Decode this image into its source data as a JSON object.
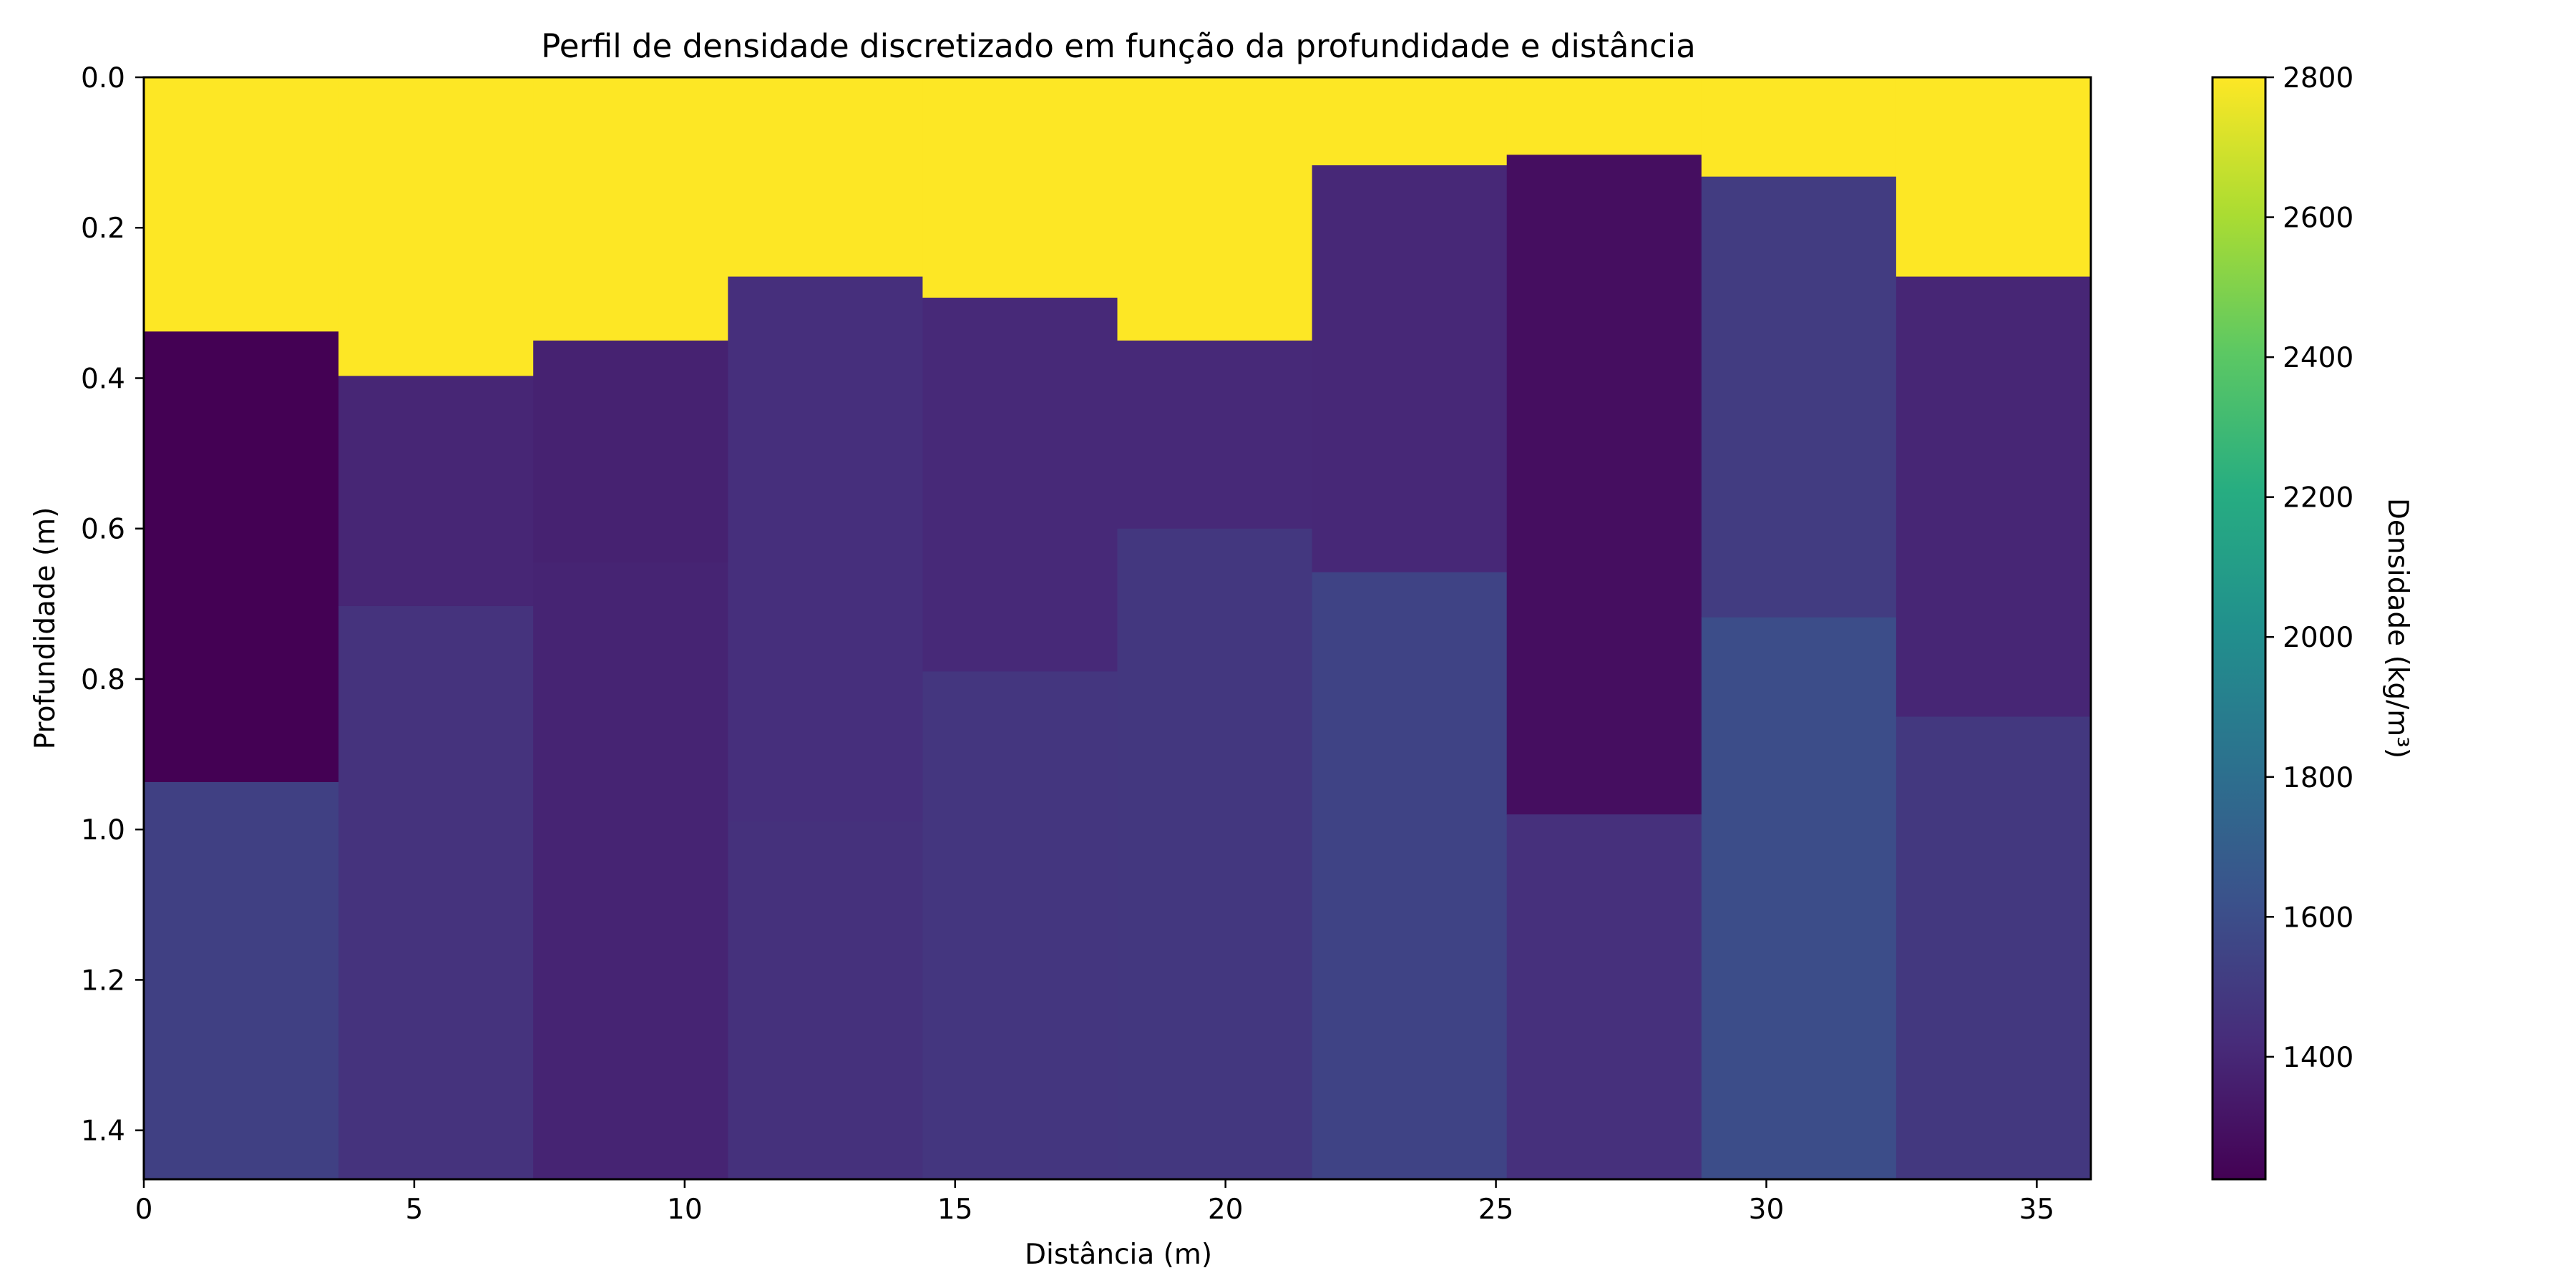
{
  "chart_data": {
    "type": "heatmap",
    "title": "Perfil de densidade discretizado em função da profundidade e distância",
    "xlabel": "Distância (m)",
    "ylabel": "Profundidade (m)",
    "xlim": [
      0,
      36
    ],
    "ylim": [
      1.465,
      0
    ],
    "y_inverted": true,
    "x_ticks": [
      0,
      5,
      10,
      15,
      20,
      25,
      30,
      35
    ],
    "y_ticks": [
      0.0,
      0.2,
      0.4,
      0.6,
      0.8,
      1.0,
      1.2,
      1.4
    ],
    "y_tick_labels": [
      "0.0",
      "0.2",
      "0.4",
      "0.6",
      "0.8",
      "1.0",
      "1.2",
      "1.4"
    ],
    "grid": false,
    "colormap": "viridis",
    "colorbar": {
      "label": "Densidade (kg/m³)",
      "range": [
        1225,
        2800
      ],
      "ticks": [
        1400,
        1600,
        1800,
        2000,
        2200,
        2400,
        2600,
        2800
      ]
    },
    "columns": [
      {
        "x0": 0.0,
        "x1": 3.6,
        "layers": [
          {
            "top": 0.0,
            "bottom": 0.338,
            "density": 2800
          },
          {
            "top": 0.338,
            "bottom": 0.937,
            "density": 1225
          },
          {
            "top": 0.937,
            "bottom": 1.465,
            "density": 1530
          }
        ]
      },
      {
        "x0": 3.6,
        "x1": 7.2,
        "layers": [
          {
            "top": 0.0,
            "bottom": 0.397,
            "density": 2800
          },
          {
            "top": 0.397,
            "bottom": 0.703,
            "density": 1395
          },
          {
            "top": 0.703,
            "bottom": 1.465,
            "density": 1460
          }
        ]
      },
      {
        "x0": 7.2,
        "x1": 10.8,
        "layers": [
          {
            "top": 0.0,
            "bottom": 0.35,
            "density": 2800
          },
          {
            "top": 0.35,
            "bottom": 0.645,
            "density": 1375
          },
          {
            "top": 0.645,
            "bottom": 1.465,
            "density": 1385
          }
        ]
      },
      {
        "x0": 10.8,
        "x1": 14.4,
        "layers": [
          {
            "top": 0.0,
            "bottom": 0.265,
            "density": 2800
          },
          {
            "top": 0.265,
            "bottom": 0.99,
            "density": 1440
          },
          {
            "top": 0.99,
            "bottom": 1.465,
            "density": 1450
          }
        ]
      },
      {
        "x0": 14.4,
        "x1": 18.0,
        "layers": [
          {
            "top": 0.0,
            "bottom": 0.293,
            "density": 2800
          },
          {
            "top": 0.293,
            "bottom": 0.79,
            "density": 1410
          },
          {
            "top": 0.79,
            "bottom": 1.465,
            "density": 1475
          }
        ]
      },
      {
        "x0": 18.0,
        "x1": 21.6,
        "layers": [
          {
            "top": 0.0,
            "bottom": 0.35,
            "density": 2800
          },
          {
            "top": 0.35,
            "bottom": 0.6,
            "density": 1410
          },
          {
            "top": 0.6,
            "bottom": 1.465,
            "density": 1480
          }
        ]
      },
      {
        "x0": 21.6,
        "x1": 25.2,
        "layers": [
          {
            "top": 0.0,
            "bottom": 0.117,
            "density": 2800
          },
          {
            "top": 0.117,
            "bottom": 0.658,
            "density": 1405
          },
          {
            "top": 0.658,
            "bottom": 1.465,
            "density": 1545
          }
        ]
      },
      {
        "x0": 25.2,
        "x1": 28.8,
        "layers": [
          {
            "top": 0.0,
            "bottom": 0.103,
            "density": 2800
          },
          {
            "top": 0.103,
            "bottom": 0.98,
            "density": 1285
          },
          {
            "top": 0.98,
            "bottom": 1.465,
            "density": 1445
          }
        ]
      },
      {
        "x0": 28.8,
        "x1": 32.4,
        "layers": [
          {
            "top": 0.0,
            "bottom": 0.132,
            "density": 2800
          },
          {
            "top": 0.132,
            "bottom": 0.718,
            "density": 1505
          },
          {
            "top": 0.718,
            "bottom": 1.465,
            "density": 1600
          }
        ]
      },
      {
        "x0": 32.4,
        "x1": 36.0,
        "layers": [
          {
            "top": 0.0,
            "bottom": 0.265,
            "density": 2800
          },
          {
            "top": 0.265,
            "bottom": 0.85,
            "density": 1395
          },
          {
            "top": 0.85,
            "bottom": 1.465,
            "density": 1485
          }
        ]
      }
    ]
  }
}
